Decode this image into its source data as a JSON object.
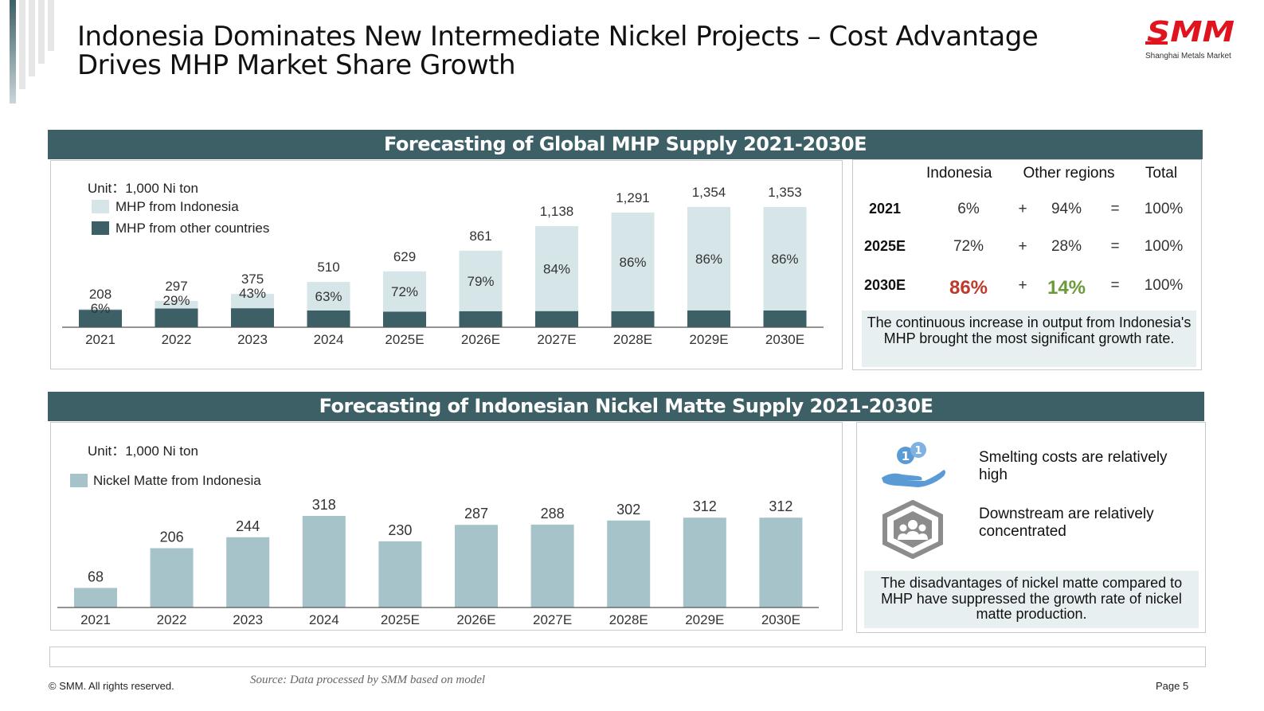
{
  "header": {
    "title": "Indonesia Dominates New Intermediate Nickel Projects – Cost Advantage Drives MHP Market Share Growth",
    "logo_text": "SMM",
    "logo_sub": "Shanghai Metals Market"
  },
  "colors": {
    "banner": "#3d5f66",
    "indonesia_light": "#d6e5e8",
    "other_dark": "#3d5f66",
    "matte_bar": "#a5c3c9",
    "highlight_red": "#c0392b",
    "highlight_green": "#6b9a38",
    "logo_red": "#e0141e"
  },
  "mhp": {
    "banner": "Forecasting of Global MHP Supply 2021-2030E",
    "unit": "Unit：1,000 Ni ton",
    "legend_indonesia": "MHP from Indonesia",
    "legend_other": "MHP from other countries",
    "table": {
      "headers": [
        "Indonesia",
        "Other regions",
        "Total"
      ],
      "rows": [
        {
          "year": "2021",
          "indonesia": "6%",
          "plus": "+",
          "other": "94%",
          "eq": "=",
          "total": "100%"
        },
        {
          "year": "2025E",
          "indonesia": "72%",
          "plus": "+",
          "other": "28%",
          "eq": "=",
          "total": "100%"
        },
        {
          "year": "2030E",
          "indonesia": "86%",
          "plus": "+",
          "other": "14%",
          "eq": "=",
          "total": "100%"
        }
      ],
      "note": "The continuous increase in output from Indonesia's MHP brought the most significant growth rate."
    }
  },
  "matte": {
    "banner": "Forecasting of Indonesian Nickel Matte Supply 2021-2030E",
    "unit": "Unit：1,000 Ni ton",
    "legend": "Nickel Matte from Indonesia",
    "features": [
      {
        "icon": "coins-in-hand-icon",
        "text": "Smelting costs are relatively high"
      },
      {
        "icon": "group-hexagon-icon",
        "text": "Downstream are relatively concentrated"
      }
    ],
    "note": "The disadvantages of nickel matte compared to MHP have suppressed the growth rate of nickel matte production."
  },
  "footer": {
    "copyright": "© SMM. All rights reserved.",
    "source": "Source: Data processed by SMM based on model",
    "page": "Page 5"
  },
  "chart_data": [
    {
      "type": "bar",
      "stacked": true,
      "title": "Forecasting of Global MHP Supply 2021-2030E",
      "unit": "1,000 Ni ton",
      "categories": [
        "2021",
        "2022",
        "2023",
        "2024",
        "2025E",
        "2026E",
        "2027E",
        "2028E",
        "2029E",
        "2030E"
      ],
      "totals": [
        208,
        297,
        375,
        510,
        629,
        861,
        1138,
        1291,
        1354,
        1353
      ],
      "total_labels": [
        "208",
        "297",
        "375",
        "510",
        "629",
        "861",
        "1,138",
        "1,291",
        "1,354",
        "1,353"
      ],
      "indonesia_share_labels": [
        "6%",
        "29%",
        "43%",
        "63%",
        "72%",
        "79%",
        "84%",
        "86%",
        "86%",
        "86%"
      ],
      "series": [
        {
          "name": "MHP from Indonesia",
          "values": [
            12,
            86,
            161,
            321,
            453,
            680,
            956,
            1110,
            1164,
            1164
          ]
        },
        {
          "name": "MHP from other countries",
          "values": [
            196,
            211,
            214,
            189,
            176,
            181,
            182,
            181,
            190,
            189
          ]
        }
      ],
      "ylim": [
        0,
        1450
      ],
      "grid": false,
      "legend": "top-left"
    },
    {
      "type": "bar",
      "title": "Forecasting of Indonesian Nickel Matte Supply 2021-2030E",
      "unit": "1,000 Ni ton",
      "categories": [
        "2021",
        "2022",
        "2023",
        "2024",
        "2025E",
        "2026E",
        "2027E",
        "2028E",
        "2029E",
        "2030E"
      ],
      "series": [
        {
          "name": "Nickel Matte from Indonesia",
          "values": [
            68,
            206,
            244,
            318,
            230,
            287,
            288,
            302,
            312,
            312
          ]
        }
      ],
      "ylim": [
        0,
        360
      ],
      "grid": false,
      "legend": "top-left"
    }
  ]
}
